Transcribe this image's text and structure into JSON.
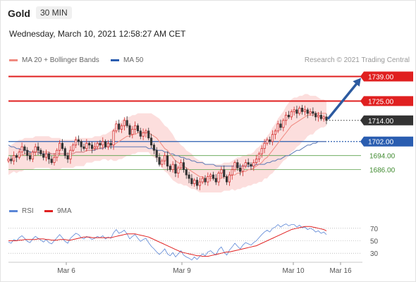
{
  "header": {
    "symbol": "Gold",
    "timeframe": "30 MIN",
    "datetime": "Wednesday, March 10, 2021 12:58:27 AM CET"
  },
  "legend": {
    "ma20": "MA 20 + Bollinger Bands",
    "ma50": "MA 50",
    "credit": "Research © 2021 Trading Central",
    "rsi": "RSI",
    "ma9": "9MA"
  },
  "colors": {
    "red_level": "#e02020",
    "blue_level": "#2a5db0",
    "green_level": "#5aa14a",
    "current": "#333333",
    "ma20": "#f08a80",
    "band": "#fbd3d1",
    "ma50": "#5d79b5",
    "arrow": "#2c5aa0",
    "rsi": "#5b86d6",
    "ma9": "#e02020"
  },
  "chart_data": [
    {
      "type": "candlestick",
      "x_labels": [
        "Mar 6",
        "Mar 9",
        "Mar 10",
        "Mar 16"
      ],
      "ylim": [
        1667,
        1744
      ],
      "levels": [
        {
          "value": 1739.0,
          "label": "1739.00",
          "kind": "resistance",
          "style": "box"
        },
        {
          "value": 1725.0,
          "label": "1725.00",
          "kind": "resistance",
          "style": "box"
        },
        {
          "value": 1714.0,
          "label": "1714.00",
          "kind": "current",
          "style": "box"
        },
        {
          "value": 1702.0,
          "label": "1702.00",
          "kind": "pivot",
          "style": "box"
        },
        {
          "value": 1694.0,
          "label": "1694.00",
          "kind": "support",
          "style": "text"
        },
        {
          "value": 1686.0,
          "label": "1686.00",
          "kind": "support",
          "style": "text"
        }
      ],
      "closes": [
        1692,
        1691,
        1694,
        1693,
        1696,
        1699,
        1697,
        1694,
        1692,
        1696,
        1699,
        1697,
        1695,
        1693,
        1695,
        1692,
        1690,
        1693,
        1697,
        1701,
        1698,
        1694,
        1692,
        1697,
        1700,
        1703,
        1702,
        1699,
        1698,
        1701,
        1700,
        1698,
        1699,
        1701,
        1700,
        1702,
        1699,
        1701,
        1700,
        1708,
        1712,
        1709,
        1711,
        1714,
        1711,
        1706,
        1709,
        1711,
        1708,
        1705,
        1707,
        1708,
        1704,
        1700,
        1697,
        1693,
        1689,
        1691,
        1694,
        1688,
        1686,
        1689,
        1684,
        1687,
        1690,
        1686,
        1683,
        1681,
        1678,
        1680,
        1677,
        1679,
        1681,
        1679,
        1682,
        1683,
        1681,
        1679,
        1684,
        1686,
        1682,
        1679,
        1683,
        1686,
        1690,
        1687,
        1685,
        1688,
        1690,
        1689,
        1688,
        1690,
        1692,
        1695,
        1698,
        1701,
        1703,
        1702,
        1706,
        1708,
        1712,
        1710,
        1714,
        1717,
        1716,
        1719,
        1720,
        1718,
        1721,
        1719,
        1720,
        1718,
        1719,
        1718,
        1716,
        1717,
        1715,
        1716,
        1714
      ],
      "ma20": [
        1691,
        1692,
        1693,
        1693,
        1694,
        1694,
        1695,
        1695,
        1695,
        1695,
        1696,
        1696,
        1696,
        1696,
        1696,
        1696,
        1695,
        1695,
        1695,
        1695,
        1695,
        1695,
        1695,
        1695,
        1695,
        1696,
        1696,
        1696,
        1696,
        1697,
        1697,
        1697,
        1698,
        1698,
        1698,
        1699,
        1699,
        1699,
        1700,
        1700,
        1701,
        1702,
        1703,
        1704,
        1705,
        1705,
        1706,
        1706,
        1707,
        1707,
        1707,
        1707,
        1707,
        1706,
        1705,
        1704,
        1702,
        1700,
        1698,
        1697,
        1695,
        1693,
        1691,
        1690,
        1689,
        1688,
        1687,
        1686,
        1685,
        1684,
        1683,
        1682,
        1682,
        1681,
        1681,
        1681,
        1681,
        1681,
        1681,
        1681,
        1682,
        1682,
        1682,
        1683,
        1683,
        1684,
        1684,
        1685,
        1685,
        1686,
        1686,
        1687,
        1688,
        1689,
        1690,
        1692,
        1693,
        1695,
        1697,
        1699,
        1701,
        1703,
        1705,
        1707,
        1709,
        1711,
        1712,
        1713,
        1714,
        1715,
        1716,
        1717,
        1717,
        1717,
        1718,
        1718,
        1718,
        1718,
        1718
      ],
      "ma50": [
        1700,
        1699,
        1699,
        1698,
        1698,
        1697,
        1697,
        1697,
        1696,
        1696,
        1696,
        1696,
        1695,
        1695,
        1695,
        1695,
        1695,
        1695,
        1695,
        1695,
        1695,
        1695,
        1695,
        1695,
        1695,
        1696,
        1696,
        1696,
        1696,
        1697,
        1697,
        1697,
        1697,
        1698,
        1698,
        1698,
        1699,
        1699,
        1699,
        1699,
        1699,
        1699,
        1699,
        1699,
        1699,
        1699,
        1699,
        1699,
        1699,
        1699,
        1699,
        1699,
        1698,
        1698,
        1698,
        1697,
        1697,
        1697,
        1696,
        1696,
        1695,
        1695,
        1694,
        1694,
        1693,
        1693,
        1692,
        1692,
        1691,
        1691,
        1690,
        1690,
        1690,
        1689,
        1689,
        1689,
        1689,
        1688,
        1688,
        1688,
        1688,
        1688,
        1688,
        1688,
        1688,
        1688,
        1688,
        1688,
        1688,
        1688,
        1688,
        1688,
        1689,
        1689,
        1689,
        1689,
        1690,
        1690,
        1691,
        1691,
        1692,
        1692,
        1693,
        1694,
        1694,
        1695,
        1696,
        1697,
        1697,
        1698,
        1699,
        1700,
        1700,
        1701,
        1701,
        1702,
        1702,
        1702,
        1702
      ],
      "band_width": [
        8,
        8,
        8,
        9,
        9,
        9,
        9,
        9,
        9,
        9,
        9,
        9,
        9,
        9,
        9,
        9,
        9,
        9,
        9,
        9,
        8,
        8,
        8,
        8,
        8,
        8,
        8,
        8,
        8,
        7,
        7,
        7,
        7,
        7,
        7,
        7,
        7,
        8,
        8,
        9,
        10,
        10,
        11,
        11,
        11,
        11,
        11,
        11,
        11,
        11,
        11,
        11,
        11,
        12,
        12,
        12,
        13,
        13,
        13,
        13,
        13,
        13,
        12,
        12,
        11,
        11,
        10,
        10,
        10,
        9,
        9,
        9,
        9,
        8,
        8,
        8,
        8,
        8,
        8,
        8,
        8,
        8,
        8,
        8,
        9,
        9,
        9,
        9,
        9,
        9,
        9,
        9,
        10,
        10,
        11,
        11,
        12,
        12,
        13,
        13,
        14,
        14,
        14,
        15,
        15,
        15,
        15,
        14,
        14,
        13,
        13,
        12,
        11,
        11,
        10,
        9,
        8,
        8,
        7
      ],
      "projection": {
        "from": 1714,
        "to": 1739
      }
    },
    {
      "type": "line",
      "title": "RSI",
      "y_ticks": [
        70,
        50,
        30
      ],
      "ylim": [
        20,
        80
      ],
      "series": [
        {
          "name": "RSI",
          "values": [
            48,
            46,
            52,
            50,
            55,
            58,
            54,
            49,
            47,
            53,
            57,
            54,
            51,
            48,
            52,
            47,
            45,
            50,
            55,
            60,
            55,
            49,
            46,
            54,
            58,
            62,
            60,
            55,
            53,
            57,
            55,
            52,
            54,
            57,
            55,
            58,
            53,
            56,
            54,
            63,
            68,
            62,
            64,
            67,
            61,
            53,
            57,
            60,
            54,
            49,
            52,
            54,
            47,
            41,
            37,
            32,
            28,
            32,
            37,
            29,
            26,
            31,
            24,
            29,
            34,
            27,
            24,
            22,
            19,
            24,
            20,
            25,
            29,
            26,
            32,
            34,
            30,
            27,
            36,
            40,
            32,
            27,
            35,
            40,
            46,
            41,
            37,
            43,
            47,
            45,
            43,
            47,
            50,
            55,
            60,
            64,
            67,
            64,
            70,
            72,
            76,
            72,
            75,
            77,
            74,
            76,
            76,
            72,
            75,
            71,
            72,
            68,
            70,
            68,
            64,
            66,
            62,
            64,
            60
          ]
        },
        {
          "name": "9MA",
          "values": [
            50,
            50,
            50,
            50,
            51,
            51,
            52,
            52,
            52,
            52,
            52,
            53,
            53,
            53,
            52,
            52,
            51,
            51,
            51,
            52,
            52,
            52,
            51,
            51,
            52,
            53,
            54,
            55,
            56,
            56,
            56,
            55,
            55,
            55,
            55,
            55,
            55,
            55,
            55,
            56,
            57,
            58,
            59,
            60,
            61,
            61,
            61,
            61,
            60,
            59,
            58,
            57,
            56,
            54,
            52,
            50,
            48,
            46,
            44,
            42,
            40,
            38,
            36,
            34,
            32,
            31,
            30,
            29,
            28,
            27,
            26,
            26,
            25,
            25,
            25,
            26,
            27,
            28,
            29,
            30,
            31,
            32,
            32,
            33,
            34,
            35,
            36,
            37,
            38,
            39,
            40,
            41,
            42,
            44,
            46,
            48,
            50,
            52,
            54,
            56,
            58,
            60,
            62,
            64,
            66,
            68,
            69,
            70,
            71,
            72,
            73,
            73,
            73,
            72,
            71,
            70,
            69,
            68,
            66
          ]
        }
      ]
    }
  ]
}
